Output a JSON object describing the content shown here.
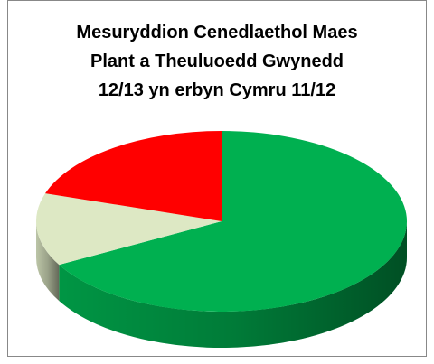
{
  "chart_data": {
    "type": "pie3d",
    "title": [
      "Mesuryddion Cenedlaethol Maes",
      "Plant a Theuluoedd Gwynedd",
      "12/13 yn erbyn Cymru 11/12"
    ],
    "values": [
      67,
      13,
      20
    ],
    "colors": [
      "#00b050",
      "#dde8c4",
      "#ff0000"
    ]
  }
}
